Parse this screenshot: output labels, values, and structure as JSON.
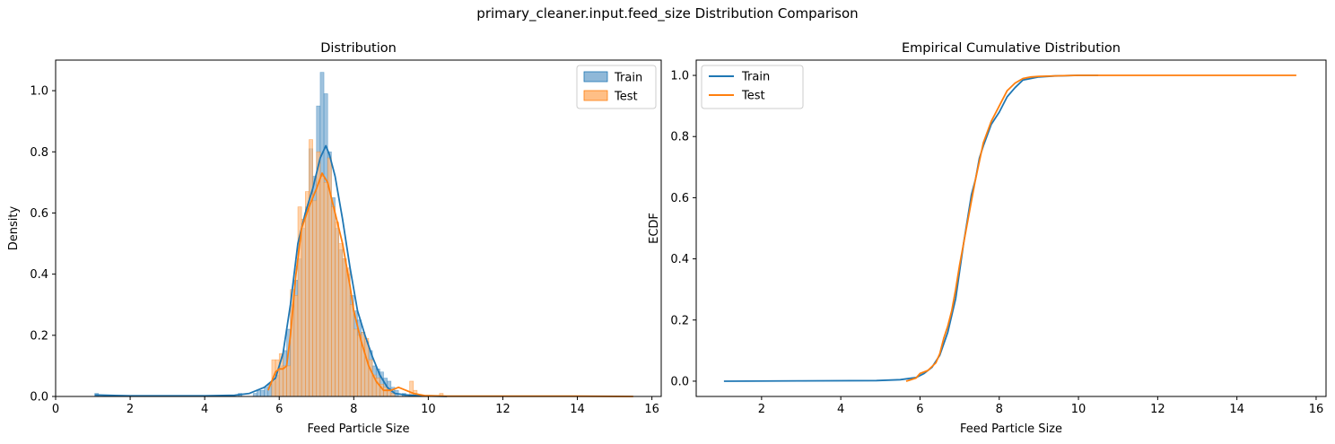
{
  "suptitle": "primary_cleaner.input.feed_size Distribution Comparison",
  "colors": {
    "train": "#1f77b4",
    "test": "#ff7f0e",
    "train_fill": "#8fb8d8",
    "test_fill": "#ffbf86",
    "overlap_fill": "#b88a5e"
  },
  "chart_data": [
    {
      "type": "histogram",
      "title": "Distribution",
      "xlabel": "Feed Particle Size",
      "ylabel": "Density",
      "xlim": [
        0,
        16.25
      ],
      "ylim": [
        0,
        1.1
      ],
      "xticks": [
        0,
        2,
        4,
        6,
        8,
        10,
        12,
        14,
        16
      ],
      "yticks": [
        0.0,
        0.2,
        0.4,
        0.6,
        0.8,
        1.0
      ],
      "legend": {
        "placement": "upper right",
        "entries": [
          "Train",
          "Test"
        ]
      },
      "grid": false,
      "bin_width": 0.1,
      "series": [
        {
          "name": "Train",
          "bin_starts": [
            1.05,
            4.9,
            5.3,
            5.4,
            5.5,
            5.6,
            5.7,
            5.8,
            5.9,
            6.0,
            6.1,
            6.2,
            6.3,
            6.4,
            6.5,
            6.6,
            6.7,
            6.8,
            6.9,
            7.0,
            7.1,
            7.2,
            7.3,
            7.4,
            7.5,
            7.6,
            7.7,
            7.8,
            7.9,
            8.0,
            8.1,
            8.2,
            8.3,
            8.4,
            8.5,
            8.6,
            8.7,
            8.8,
            8.9,
            9.0,
            9.1,
            9.3
          ],
          "values": [
            0.01,
            0.01,
            0.01,
            0.02,
            0.02,
            0.03,
            0.04,
            0.05,
            0.07,
            0.1,
            0.15,
            0.22,
            0.3,
            0.38,
            0.45,
            0.55,
            0.62,
            0.81,
            0.72,
            0.95,
            1.06,
            0.99,
            0.8,
            0.65,
            0.55,
            0.48,
            0.45,
            0.4,
            0.33,
            0.28,
            0.25,
            0.21,
            0.18,
            0.15,
            0.1,
            0.09,
            0.08,
            0.06,
            0.05,
            0.03,
            0.02,
            0.01
          ]
        },
        {
          "name": "Test",
          "bin_starts": [
            5.8,
            5.9,
            6.0,
            6.1,
            6.2,
            6.3,
            6.4,
            6.5,
            6.6,
            6.7,
            6.8,
            6.9,
            7.0,
            7.1,
            7.2,
            7.3,
            7.4,
            7.5,
            7.6,
            7.7,
            7.8,
            7.9,
            8.0,
            8.1,
            8.2,
            8.3,
            8.4,
            8.5,
            8.6,
            8.7,
            8.8,
            8.9,
            9.0,
            9.5,
            9.6,
            10.3
          ],
          "values": [
            0.12,
            0.12,
            0.14,
            0.1,
            0.1,
            0.35,
            0.33,
            0.62,
            0.58,
            0.67,
            0.84,
            0.64,
            0.8,
            0.72,
            0.7,
            0.78,
            0.62,
            0.57,
            0.5,
            0.45,
            0.42,
            0.3,
            0.22,
            0.2,
            0.21,
            0.19,
            0.12,
            0.07,
            0.06,
            0.04,
            0.03,
            0.02,
            0.01,
            0.05,
            0.02,
            0.01
          ]
        }
      ],
      "kde": [
        {
          "name": "Train",
          "x": [
            1.05,
            2,
            3,
            4,
            4.8,
            5.2,
            5.6,
            5.9,
            6.1,
            6.3,
            6.5,
            6.7,
            6.9,
            7.1,
            7.25,
            7.35,
            7.5,
            7.7,
            7.9,
            8.1,
            8.3,
            8.5,
            8.7,
            8.9,
            9.1,
            9.4,
            9.8,
            10.5
          ],
          "y": [
            0.005,
            0.002,
            0.002,
            0.002,
            0.004,
            0.01,
            0.03,
            0.06,
            0.14,
            0.3,
            0.5,
            0.6,
            0.68,
            0.78,
            0.82,
            0.79,
            0.72,
            0.58,
            0.42,
            0.28,
            0.2,
            0.13,
            0.07,
            0.03,
            0.01,
            0.005,
            0.002,
            0.0
          ]
        },
        {
          "name": "Test",
          "x": [
            5.7,
            5.8,
            5.9,
            6.0,
            6.1,
            6.2,
            6.3,
            6.45,
            6.6,
            6.8,
            7.0,
            7.15,
            7.3,
            7.5,
            7.7,
            7.9,
            8.0,
            8.2,
            8.4,
            8.6,
            8.8,
            9.0,
            9.2,
            9.4,
            9.6,
            9.9,
            10.5,
            12,
            14,
            15.5
          ],
          "y": [
            0.02,
            0.05,
            0.08,
            0.09,
            0.09,
            0.1,
            0.2,
            0.4,
            0.55,
            0.62,
            0.68,
            0.73,
            0.7,
            0.6,
            0.5,
            0.36,
            0.28,
            0.18,
            0.1,
            0.05,
            0.02,
            0.02,
            0.03,
            0.02,
            0.01,
            0.003,
            0.001,
            0.001,
            0.001,
            0.0
          ]
        }
      ]
    },
    {
      "type": "line",
      "title": "Empirical Cumulative Distribution",
      "xlabel": "Feed Particle Size",
      "ylabel": "ECDF",
      "xlim": [
        0.35,
        16.25
      ],
      "ylim": [
        -0.05,
        1.05
      ],
      "xticks": [
        2,
        4,
        6,
        8,
        10,
        12,
        14,
        16
      ],
      "yticks": [
        0.0,
        0.2,
        0.4,
        0.6,
        0.8,
        1.0
      ],
      "legend": {
        "placement": "upper left",
        "entries": [
          "Train",
          "Test"
        ]
      },
      "grid": false,
      "series": [
        {
          "name": "Train",
          "x": [
            1.05,
            3,
            4.9,
            5.5,
            5.9,
            6.1,
            6.3,
            6.5,
            6.7,
            6.9,
            7.0,
            7.1,
            7.2,
            7.3,
            7.4,
            7.5,
            7.6,
            7.8,
            8.0,
            8.2,
            8.4,
            8.6,
            8.8,
            9.0,
            9.4,
            10.0,
            10.5
          ],
          "y": [
            0.0,
            0.001,
            0.002,
            0.005,
            0.012,
            0.025,
            0.045,
            0.085,
            0.16,
            0.27,
            0.36,
            0.45,
            0.53,
            0.61,
            0.66,
            0.73,
            0.77,
            0.84,
            0.88,
            0.93,
            0.96,
            0.985,
            0.99,
            0.995,
            0.998,
            1.0,
            1.0
          ]
        },
        {
          "name": "Test",
          "x": [
            5.65,
            5.9,
            6.0,
            6.2,
            6.4,
            6.5,
            6.6,
            6.7,
            6.8,
            6.9,
            7.0,
            7.1,
            7.2,
            7.3,
            7.4,
            7.5,
            7.6,
            7.8,
            8.0,
            8.2,
            8.4,
            8.6,
            8.8,
            9.0,
            9.6,
            10.0,
            12.0,
            15.5
          ],
          "y": [
            0.0,
            0.01,
            0.025,
            0.035,
            0.06,
            0.09,
            0.14,
            0.18,
            0.23,
            0.3,
            0.38,
            0.45,
            0.52,
            0.59,
            0.66,
            0.72,
            0.78,
            0.85,
            0.9,
            0.95,
            0.975,
            0.99,
            0.995,
            0.997,
            0.999,
            1.0,
            1.0,
            1.0
          ]
        }
      ]
    }
  ]
}
